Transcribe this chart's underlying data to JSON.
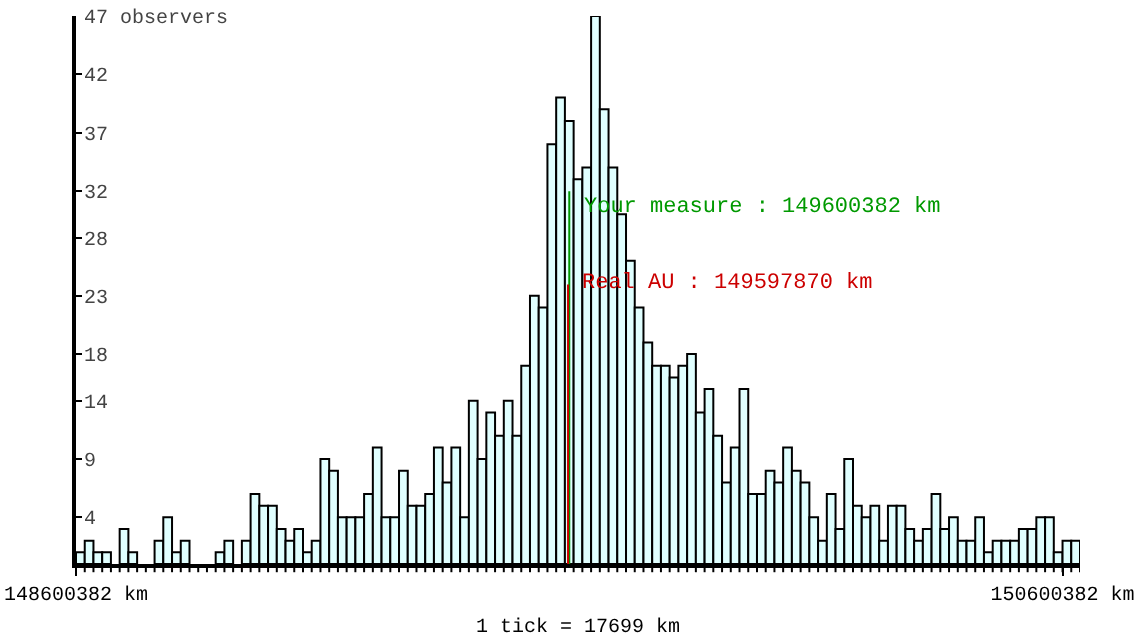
{
  "chart_data": {
    "type": "histogram",
    "xlabel": "1 tick = 17699 km",
    "bins": [
      148600382,
      148618081,
      148635780,
      148653479,
      148671178,
      148688877,
      148706576,
      148724275,
      148741974,
      148759673,
      148777372,
      148795071,
      148812770,
      148830469,
      148848168,
      148865867,
      148883566,
      148901265,
      148918964,
      148936663,
      148954362,
      148972061,
      148989760,
      149007459,
      149025158,
      149042857,
      149060556,
      149078255,
      149095954,
      149113653,
      149131352,
      149149051,
      149166750,
      149184449,
      149202148,
      149219847,
      149237546,
      149255245,
      149272944,
      149290643,
      149308342,
      149326041,
      149343740,
      149361439,
      149379138,
      149396837,
      149414536,
      149432235,
      149449934,
      149467633,
      149485332,
      149503031,
      149520730,
      149538429,
      149556128,
      149573827,
      149591526,
      149609225,
      149626924,
      149644623,
      149662322,
      149680021,
      149697720,
      149715419,
      149733118,
      149750817,
      149768516,
      149786215,
      149803914,
      149821613,
      149839312,
      149857011,
      149874710,
      149892409,
      149910108,
      149927807,
      149945506,
      149963205,
      149980904,
      149998603,
      150016302,
      150034001,
      150051700,
      150069399,
      150087098,
      150104797,
      150122496,
      150140195,
      150157894,
      150175593,
      150193292,
      150210991,
      150228690,
      150246389,
      150264088,
      150281787,
      150299486,
      150317185,
      150334884,
      150352583,
      150370282,
      150387981,
      150405680,
      150423379,
      150441078,
      150458777,
      150476476,
      150494175,
      150511874,
      150529573,
      150547272,
      150564971,
      150582670,
      150600369,
      150618068,
      150635767
    ],
    "values": [
      1,
      2,
      1,
      1,
      0,
      3,
      1,
      0,
      0,
      2,
      4,
      1,
      2,
      0,
      0,
      0,
      1,
      2,
      0,
      2,
      6,
      5,
      5,
      3,
      2,
      3,
      1,
      2,
      9,
      8,
      4,
      4,
      4,
      6,
      10,
      4,
      4,
      8,
      5,
      5,
      6,
      10,
      7,
      10,
      4,
      14,
      9,
      13,
      11,
      14,
      11,
      17,
      23,
      22,
      36,
      40,
      38,
      33,
      34,
      47,
      39,
      34,
      30,
      26,
      22,
      19,
      17,
      17,
      16,
      17,
      18,
      13,
      15,
      11,
      7,
      10,
      15,
      6,
      6,
      8,
      7,
      10,
      8,
      7,
      4,
      2,
      6,
      3,
      9,
      5,
      4,
      5,
      2,
      5,
      5,
      3,
      2,
      3,
      6,
      3,
      4,
      2,
      2,
      4,
      1,
      2,
      2,
      2,
      3,
      3,
      4,
      4,
      1,
      2,
      2
    ],
    "color": "#e0ffff",
    "xlim": [
      148600382,
      150635767
    ],
    "xticks": [
      {
        "value": 148600382,
        "label": "148600382 km"
      },
      {
        "value": 150600382,
        "label": "150600382 km"
      }
    ],
    "ylim": [
      0,
      47
    ],
    "yticks": [
      4,
      9,
      14,
      18,
      23,
      28,
      32,
      37,
      42,
      {
        "value": 47,
        "label": "47 observers"
      }
    ],
    "ref_lines": [
      {
        "axis": "x",
        "value": 149600382,
        "label": "Your measure : 149600382 km",
        "color": "#009900"
      },
      {
        "axis": "x",
        "value": 149597870,
        "label": "Real AU : 149597870 km",
        "color": "#cc0000"
      }
    ],
    "grid": false
  }
}
